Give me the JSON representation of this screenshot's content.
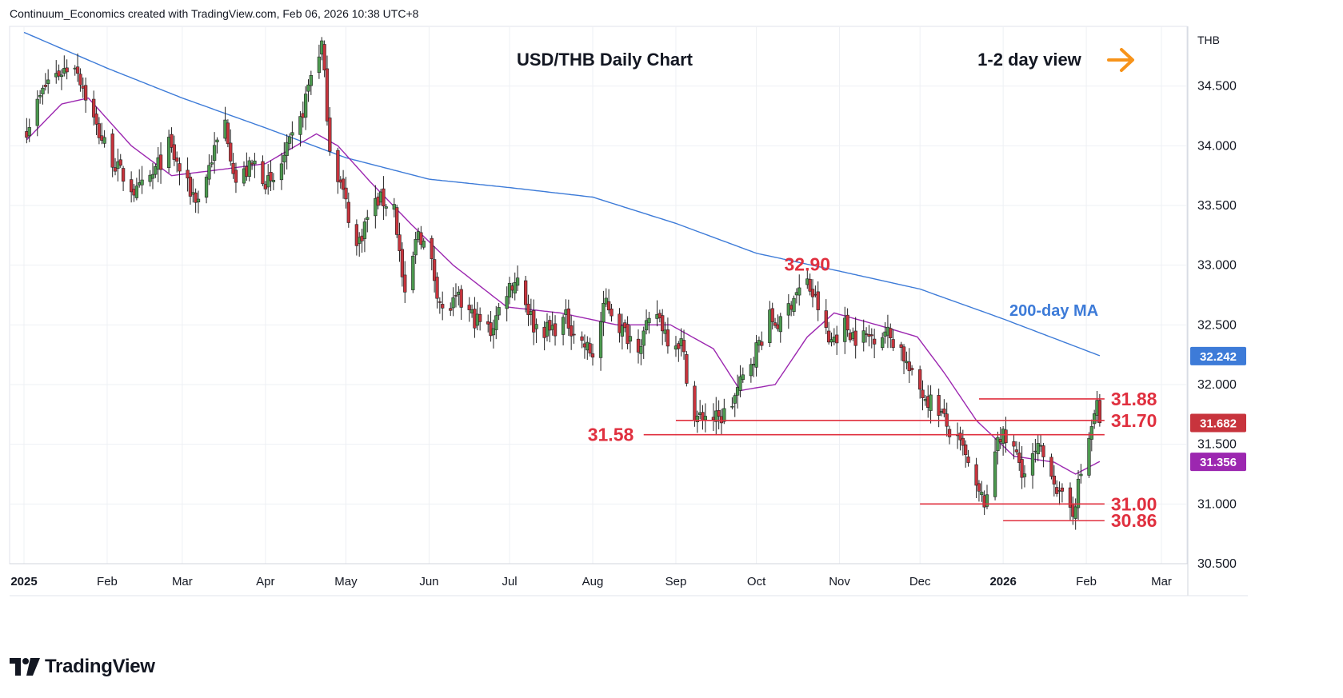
{
  "header": {
    "attribution": "Continuum_Economics created with TradingView.com, Feb 06, 2026 10:38 UTC+8"
  },
  "brand": {
    "name": "TradingView"
  },
  "colors": {
    "up": "#4c9a4f",
    "down": "#c8343d",
    "ma200": "#3d7bd8",
    "ma21": "#9c27b0",
    "level": "#e0303f",
    "arrow": "#f7931a"
  },
  "chart_data": {
    "type": "candlestick",
    "title": "USD/THB Daily Chart",
    "subtitle": "1-2 day view",
    "view_arrow_icon": "right-arrow-icon",
    "currency_label": "THB",
    "ylim": [
      30.5,
      35.0
    ],
    "y_ticks": [
      "34.500",
      "34.000",
      "33.500",
      "33.000",
      "32.500",
      "32.000",
      "31.500",
      "31.000",
      "30.500"
    ],
    "y_tick_values": [
      34.5,
      34.0,
      33.5,
      33.0,
      32.5,
      32.0,
      31.5,
      31.0,
      30.5
    ],
    "x_ticks": [
      "2025",
      "Feb",
      "Mar",
      "Apr",
      "May",
      "Jun",
      "Jul",
      "Aug",
      "Sep",
      "Oct",
      "Nov",
      "Dec",
      "2026",
      "Feb",
      "Mar"
    ],
    "x_tick_dates": [
      "2025-01-01",
      "2025-02-01",
      "2025-03-01",
      "2025-04-01",
      "2025-05-01",
      "2025-06-01",
      "2025-07-01",
      "2025-08-01",
      "2025-09-01",
      "2025-10-01",
      "2025-11-01",
      "2025-12-01",
      "2026-01-01",
      "2026-02-01",
      "2026-03-01"
    ],
    "ma200_label": "200-day MA",
    "price_badges": [
      {
        "label": "32.242",
        "value": 32.242,
        "color": "#3d7bd8"
      },
      {
        "label": "31.682",
        "value": 31.682,
        "color": "#c8343d"
      },
      {
        "label": "31.356",
        "value": 31.356,
        "color": "#9c27b0"
      }
    ],
    "levels": [
      {
        "label": "31.88",
        "value": 31.88,
        "from": "2025-12-23",
        "to": "2026-02-06",
        "label_side": "right"
      },
      {
        "label": "31.70",
        "value": 31.7,
        "from": "2025-09-01",
        "to": "2026-02-06",
        "label_side": "right"
      },
      {
        "label": "31.58",
        "value": 31.58,
        "from": "2025-08-20",
        "to": "2026-02-06",
        "label_side": "left"
      },
      {
        "label": "31.00",
        "value": 31.0,
        "from": "2025-12-01",
        "to": "2026-02-06",
        "label_side": "right"
      },
      {
        "label": "30.86",
        "value": 30.86,
        "from": "2026-01-01",
        "to": "2026-02-06",
        "label_side": "right"
      }
    ],
    "peak_label": {
      "label": "32.90",
      "date": "2025-10-20",
      "value": 32.9
    },
    "close_anchors": [
      [
        "2025-01-02",
        34.15
      ],
      [
        "2025-01-10",
        34.55
      ],
      [
        "2025-01-20",
        34.7
      ],
      [
        "2025-01-28",
        34.15
      ],
      [
        "2025-02-05",
        33.8
      ],
      [
        "2025-02-12",
        33.6
      ],
      [
        "2025-02-18",
        33.75
      ],
      [
        "2025-02-24",
        34.0
      ],
      [
        "2025-03-03",
        33.65
      ],
      [
        "2025-03-07",
        33.55
      ],
      [
        "2025-03-12",
        33.9
      ],
      [
        "2025-03-17",
        34.2
      ],
      [
        "2025-03-21",
        33.7
      ],
      [
        "2025-03-28",
        33.85
      ],
      [
        "2025-04-03",
        33.65
      ],
      [
        "2025-04-08",
        33.9
      ],
      [
        "2025-04-14",
        34.2
      ],
      [
        "2025-04-18",
        34.6
      ],
      [
        "2025-04-22",
        34.85
      ],
      [
        "2025-04-25",
        34.0
      ],
      [
        "2025-04-30",
        33.6
      ],
      [
        "2025-05-05",
        33.15
      ],
      [
        "2025-05-09",
        33.4
      ],
      [
        "2025-05-13",
        33.55
      ],
      [
        "2025-05-19",
        33.5
      ],
      [
        "2025-05-23",
        32.7
      ],
      [
        "2025-05-28",
        33.3
      ],
      [
        "2025-06-02",
        33.0
      ],
      [
        "2025-06-06",
        32.6
      ],
      [
        "2025-06-12",
        32.7
      ],
      [
        "2025-06-18",
        32.55
      ],
      [
        "2025-06-24",
        32.45
      ],
      [
        "2025-06-30",
        32.8
      ],
      [
        "2025-07-04",
        32.9
      ],
      [
        "2025-07-10",
        32.5
      ],
      [
        "2025-07-16",
        32.45
      ],
      [
        "2025-07-22",
        32.55
      ],
      [
        "2025-07-28",
        32.35
      ],
      [
        "2025-08-01",
        32.25
      ],
      [
        "2025-08-06",
        32.7
      ],
      [
        "2025-08-12",
        32.45
      ],
      [
        "2025-08-18",
        32.35
      ],
      [
        "2025-08-25",
        32.6
      ],
      [
        "2025-08-29",
        32.4
      ],
      [
        "2025-09-03",
        32.35
      ],
      [
        "2025-09-08",
        31.7
      ],
      [
        "2025-09-12",
        31.75
      ],
      [
        "2025-09-17",
        31.7
      ],
      [
        "2025-09-22",
        31.85
      ],
      [
        "2025-09-26",
        32.05
      ],
      [
        "2025-10-01",
        32.3
      ],
      [
        "2025-10-06",
        32.55
      ],
      [
        "2025-10-10",
        32.5
      ],
      [
        "2025-10-15",
        32.75
      ],
      [
        "2025-10-20",
        32.85
      ],
      [
        "2025-10-24",
        32.65
      ],
      [
        "2025-10-28",
        32.35
      ],
      [
        "2025-11-03",
        32.5
      ],
      [
        "2025-11-07",
        32.4
      ],
      [
        "2025-11-12",
        32.4
      ],
      [
        "2025-11-18",
        32.45
      ],
      [
        "2025-11-24",
        32.3
      ],
      [
        "2025-11-28",
        32.05
      ],
      [
        "2025-12-03",
        31.9
      ],
      [
        "2025-12-08",
        31.8
      ],
      [
        "2025-12-12",
        31.6
      ],
      [
        "2025-12-17",
        31.45
      ],
      [
        "2025-12-22",
        31.1
      ],
      [
        "2025-12-26",
        31.0
      ],
      [
        "2025-12-30",
        31.6
      ],
      [
        "2026-01-05",
        31.45
      ],
      [
        "2026-01-09",
        31.25
      ],
      [
        "2026-01-14",
        31.45
      ],
      [
        "2026-01-19",
        31.3
      ],
      [
        "2026-01-22",
        31.05
      ],
      [
        "2026-01-27",
        30.95
      ],
      [
        "2026-01-30",
        31.25
      ],
      [
        "2026-02-02",
        31.55
      ],
      [
        "2026-02-04",
        31.75
      ],
      [
        "2026-02-05",
        31.82
      ],
      [
        "2026-02-06",
        31.68
      ]
    ],
    "ma21_anchors": [
      [
        "2025-01-02",
        34.05
      ],
      [
        "2025-01-15",
        34.35
      ],
      [
        "2025-01-25",
        34.4
      ],
      [
        "2025-02-10",
        34.0
      ],
      [
        "2025-02-25",
        33.75
      ],
      [
        "2025-03-15",
        33.8
      ],
      [
        "2025-04-01",
        33.85
      ],
      [
        "2025-04-20",
        34.1
      ],
      [
        "2025-04-28",
        34.0
      ],
      [
        "2025-05-10",
        33.7
      ],
      [
        "2025-05-25",
        33.35
      ],
      [
        "2025-06-10",
        33.0
      ],
      [
        "2025-06-30",
        32.65
      ],
      [
        "2025-07-20",
        32.6
      ],
      [
        "2025-08-10",
        32.5
      ],
      [
        "2025-08-30",
        32.5
      ],
      [
        "2025-09-15",
        32.3
      ],
      [
        "2025-09-25",
        31.95
      ],
      [
        "2025-10-08",
        32.0
      ],
      [
        "2025-10-20",
        32.4
      ],
      [
        "2025-10-30",
        32.6
      ],
      [
        "2025-11-15",
        32.5
      ],
      [
        "2025-11-30",
        32.4
      ],
      [
        "2025-12-10",
        32.1
      ],
      [
        "2025-12-22",
        31.7
      ],
      [
        "2026-01-05",
        31.4
      ],
      [
        "2026-01-20",
        31.35
      ],
      [
        "2026-01-28",
        31.25
      ],
      [
        "2026-02-06",
        31.356
      ]
    ],
    "ma200_anchors": [
      [
        "2025-01-01",
        34.95
      ],
      [
        "2025-02-01",
        34.65
      ],
      [
        "2025-03-01",
        34.4
      ],
      [
        "2025-04-01",
        34.15
      ],
      [
        "2025-05-01",
        33.9
      ],
      [
        "2025-06-01",
        33.72
      ],
      [
        "2025-07-01",
        33.65
      ],
      [
        "2025-08-01",
        33.57
      ],
      [
        "2025-09-01",
        33.35
      ],
      [
        "2025-10-01",
        33.1
      ],
      [
        "2025-11-01",
        32.95
      ],
      [
        "2025-12-01",
        32.8
      ],
      [
        "2026-01-01",
        32.55
      ],
      [
        "2026-02-06",
        32.242
      ]
    ]
  }
}
